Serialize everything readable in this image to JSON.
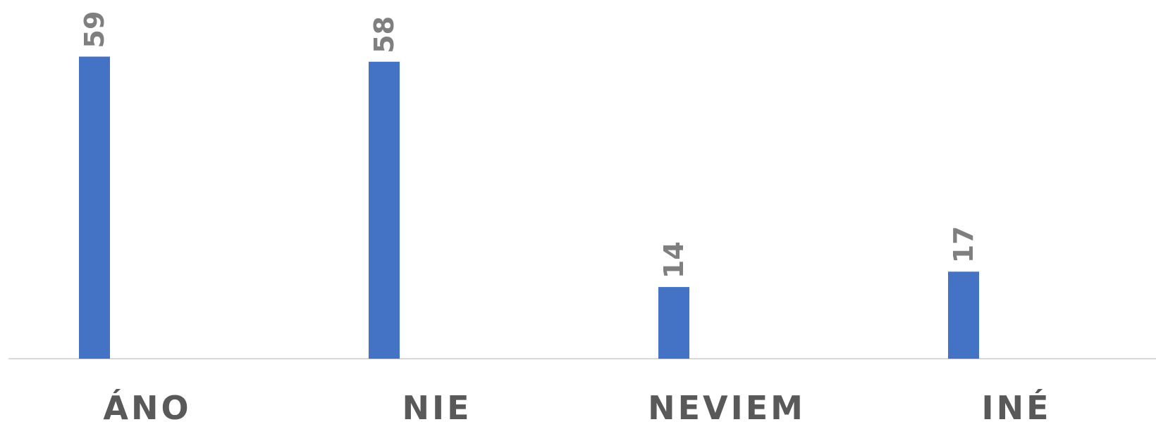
{
  "chart_data": {
    "type": "bar",
    "categories": [
      "ÁNO",
      "NIE",
      "NEVIEM",
      "INÉ"
    ],
    "values": [
      59,
      58,
      14,
      17
    ],
    "data_labels": [
      "59",
      "58",
      "14",
      "17"
    ],
    "title": "",
    "xlabel": "",
    "ylabel": "",
    "ylim": [
      0,
      60
    ],
    "grid": false,
    "legend": "none",
    "bar_color": "#4472C4",
    "axis_color": "#D9D9D9",
    "category_label_color": "#595959",
    "data_label_color": "#7F7F7F"
  }
}
